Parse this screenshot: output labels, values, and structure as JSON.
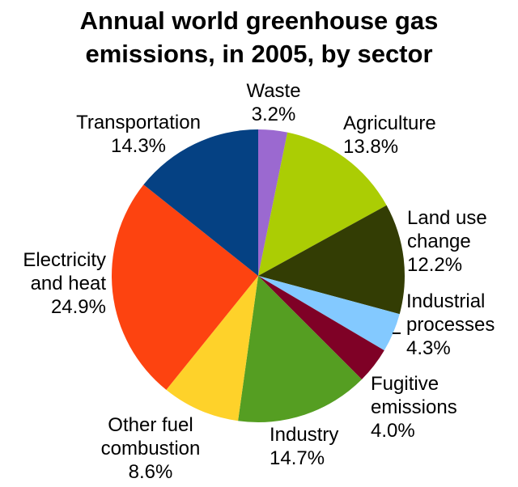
{
  "chart_data": {
    "type": "pie",
    "title_lines": [
      "Annual world greenhouse gas",
      "emissions, in 2005, by sector"
    ],
    "slices": [
      {
        "name": "Waste",
        "label_lines": [
          "Waste"
        ],
        "value": 3.2,
        "value_label": "3.2%",
        "color": "#9b69d0"
      },
      {
        "name": "Agriculture",
        "label_lines": [
          "Agriculture"
        ],
        "value": 13.8,
        "value_label": "13.8%",
        "color": "#abcd04"
      },
      {
        "name": "Land use change",
        "label_lines": [
          "Land use",
          "change"
        ],
        "value": 12.2,
        "value_label": "12.2%",
        "color": "#333d04"
      },
      {
        "name": "Industrial processes",
        "label_lines": [
          "Industrial",
          "processes"
        ],
        "value": 4.3,
        "value_label": "4.3%",
        "color": "#83c9ff"
      },
      {
        "name": "Fugitive emissions",
        "label_lines": [
          "Fugitive",
          "emissions"
        ],
        "value": 4.0,
        "value_label": "4.0%",
        "color": "#7f0126"
      },
      {
        "name": "Industry",
        "label_lines": [
          "Industry"
        ],
        "value": 14.7,
        "value_label": "14.7%",
        "color": "#559e22"
      },
      {
        "name": "Other fuel combustion",
        "label_lines": [
          "Other fuel",
          "combustion"
        ],
        "value": 8.6,
        "value_label": "8.6%",
        "color": "#fed22a"
      },
      {
        "name": "Electricity and heat",
        "label_lines": [
          "Electricity",
          "and heat"
        ],
        "value": 24.9,
        "value_label": "24.9%",
        "color": "#fd4310"
      },
      {
        "name": "Transportation",
        "label_lines": [
          "Transportation"
        ],
        "value": 14.3,
        "value_label": "14.3%",
        "color": "#054183"
      }
    ]
  }
}
